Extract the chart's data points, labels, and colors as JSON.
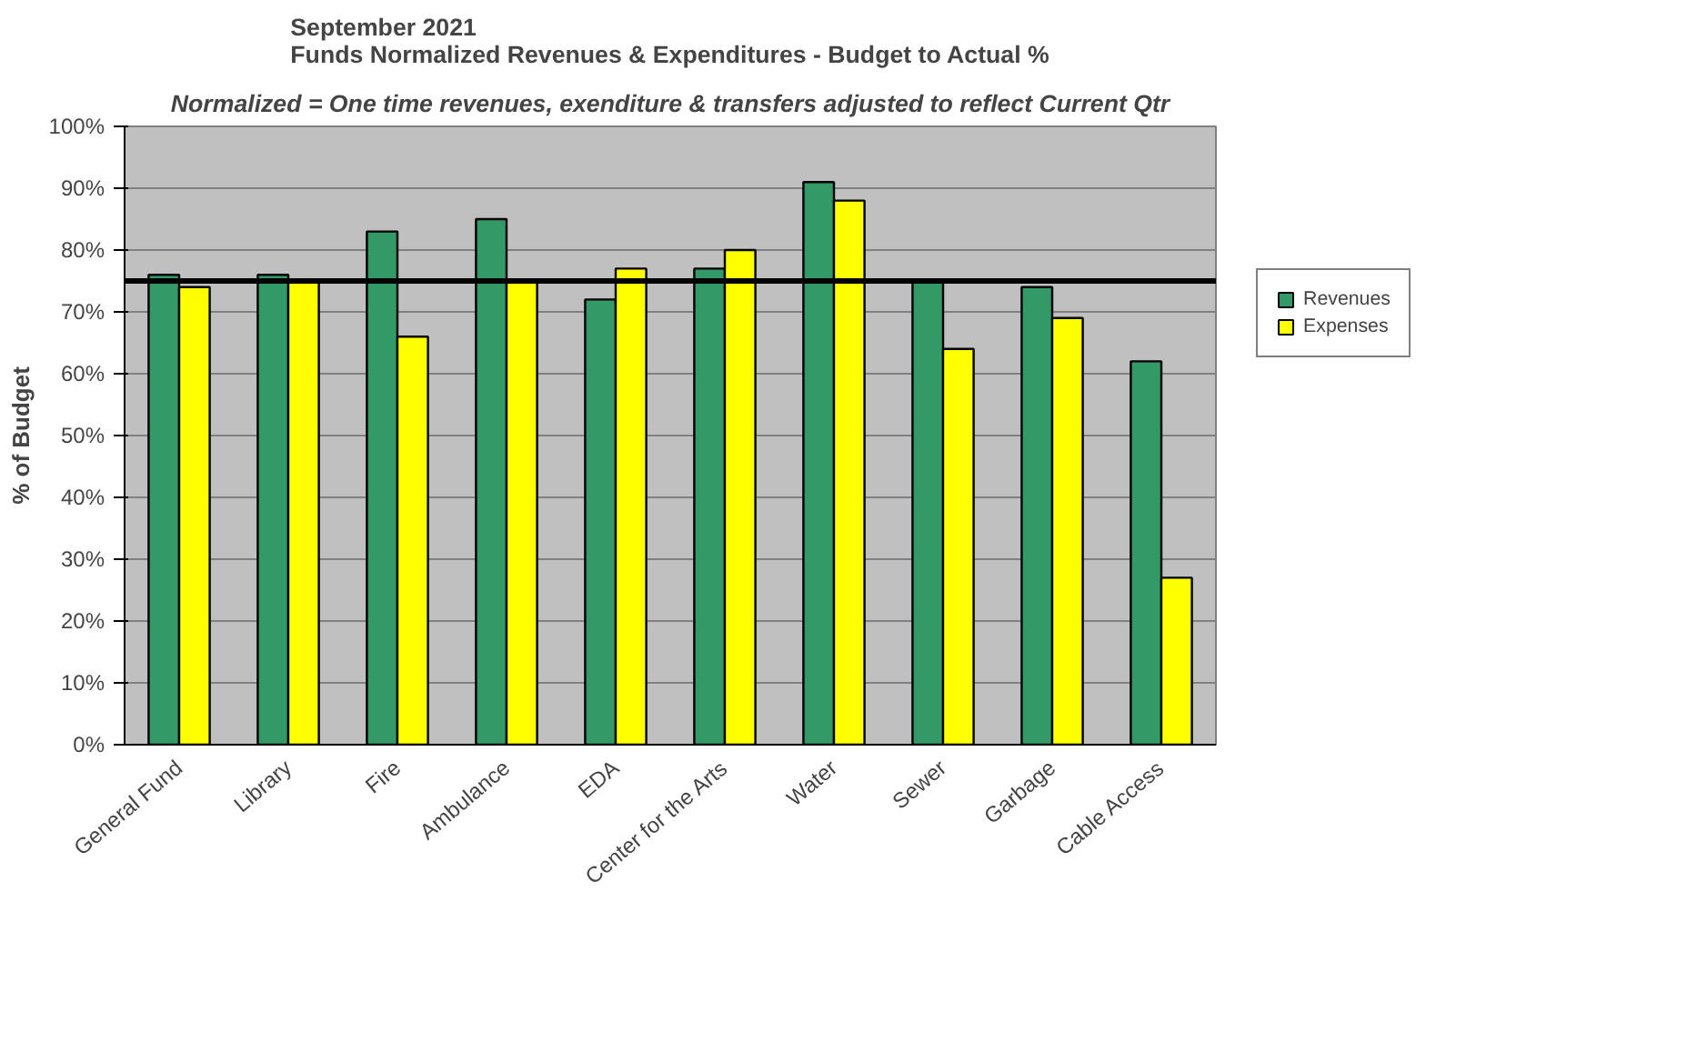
{
  "chart_data": {
    "type": "bar",
    "title": "September 2021\nFunds Normalized Revenues & Expenditures - Budget to Actual %",
    "subtitle": "Normalized = One time revenues, exenditure & transfers adjusted to reflect Current Qtr",
    "ylabel": "% of Budget",
    "categories": [
      "General Fund",
      "Library",
      "Fire",
      "Ambulance",
      "EDA",
      "Center for the Arts",
      "Water",
      "Sewer",
      "Garbage",
      "Cable Access"
    ],
    "series": [
      {
        "name": "Revenues",
        "color": "#339966",
        "values": [
          76,
          76,
          83,
          85,
          72,
          77,
          91,
          75,
          74,
          62
        ]
      },
      {
        "name": "Expenses",
        "color": "#ffff00",
        "values": [
          74,
          75,
          66,
          75,
          77,
          80,
          88,
          64,
          69,
          27
        ]
      }
    ],
    "ylim": [
      0,
      100
    ],
    "yticks": [
      {
        "value": 0,
        "label": "0%"
      },
      {
        "value": 10,
        "label": "10%"
      },
      {
        "value": 20,
        "label": "20%"
      },
      {
        "value": 30,
        "label": "30%"
      },
      {
        "value": 40,
        "label": "40%"
      },
      {
        "value": 50,
        "label": "50%"
      },
      {
        "value": 60,
        "label": "60%"
      },
      {
        "value": 70,
        "label": "70%"
      },
      {
        "value": 80,
        "label": "80%"
      },
      {
        "value": 90,
        "label": "90%"
      },
      {
        "value": 100,
        "label": "100%"
      }
    ],
    "ref_lines": [
      {
        "axis": "y",
        "value": 75,
        "color": "#000000"
      }
    ],
    "grid": "y",
    "legend": "right"
  }
}
